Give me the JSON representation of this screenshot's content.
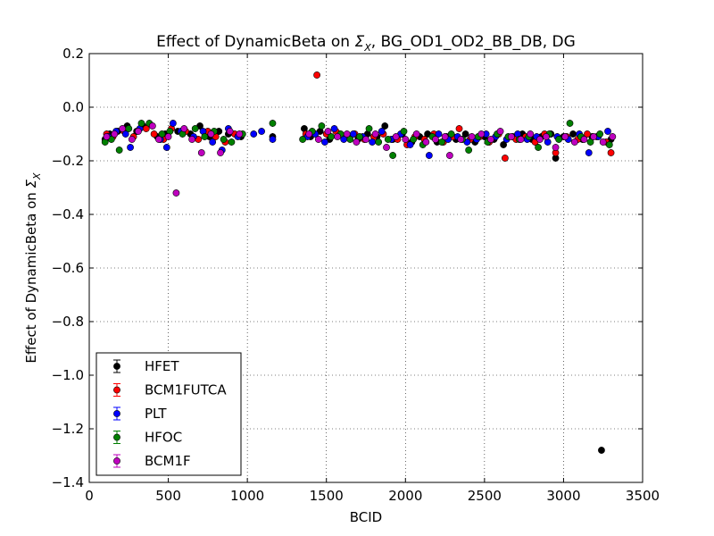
{
  "chart_data": {
    "type": "scatter",
    "title": "Effect of DynamicBeta on Σ_X, BG_OD1_OD2_BB_DB, DG",
    "title_parts": {
      "prefix": "Effect of DynamicBeta on ",
      "sigma": "Σ",
      "sub": "X",
      "suffix": ", BG_OD1_OD2_BB_DB, DG"
    },
    "xlabel": "BCID",
    "ylabel": "Effect of DynamicBeta on Σ_X",
    "ylabel_parts": {
      "prefix": "Effect of DynamicBeta on ",
      "sigma": "Σ",
      "sub": "X"
    },
    "xlim": [
      0,
      3500
    ],
    "ylim": [
      -1.4,
      0.2
    ],
    "xticks": [
      0,
      500,
      1000,
      1500,
      2000,
      2500,
      3000,
      3500
    ],
    "xtick_labels": [
      "0",
      "500",
      "1000",
      "1500",
      "2000",
      "2500",
      "3000",
      "3500"
    ],
    "yticks": [
      0.2,
      0.0,
      -0.2,
      -0.4,
      -0.6,
      -0.8,
      -1.0,
      -1.2,
      -1.4
    ],
    "ytick_labels": [
      "0.2",
      "0.0",
      "−0.2",
      "−0.4",
      "−0.6",
      "−0.8",
      "−1.0",
      "−1.2",
      "−1.4"
    ],
    "grid": true,
    "legend_position": "lower-left",
    "series": [
      {
        "name": "HFET",
        "color": "#000000",
        "points": [
          [
            100,
            -0.12
          ],
          [
            130,
            -0.1
          ],
          [
            180,
            -0.09
          ],
          [
            240,
            -0.07
          ],
          [
            300,
            -0.09
          ],
          [
            340,
            -0.07
          ],
          [
            430,
            -0.11
          ],
          [
            480,
            -0.1
          ],
          [
            560,
            -0.09
          ],
          [
            640,
            -0.1
          ],
          [
            700,
            -0.07
          ],
          [
            760,
            -0.11
          ],
          [
            820,
            -0.09
          ],
          [
            880,
            -0.1
          ],
          [
            960,
            -0.11
          ],
          [
            1160,
            -0.11
          ],
          [
            1360,
            -0.08
          ],
          [
            1400,
            -0.11
          ],
          [
            1460,
            -0.09
          ],
          [
            1520,
            -0.12
          ],
          [
            1580,
            -0.1
          ],
          [
            1640,
            -0.11
          ],
          [
            1700,
            -0.12
          ],
          [
            1760,
            -0.1
          ],
          [
            1820,
            -0.11
          ],
          [
            1870,
            -0.07
          ],
          [
            1920,
            -0.12
          ],
          [
            1980,
            -0.1
          ],
          [
            2040,
            -0.13
          ],
          [
            2090,
            -0.11
          ],
          [
            2140,
            -0.1
          ],
          [
            2200,
            -0.13
          ],
          [
            2260,
            -0.11
          ],
          [
            2320,
            -0.12
          ],
          [
            2380,
            -0.1
          ],
          [
            2440,
            -0.13
          ],
          [
            2500,
            -0.11
          ],
          [
            2560,
            -0.12
          ],
          [
            2620,
            -0.14
          ],
          [
            2680,
            -0.11
          ],
          [
            2740,
            -0.1
          ],
          [
            2800,
            -0.12
          ],
          [
            2860,
            -0.11
          ],
          [
            2920,
            -0.1
          ],
          [
            2950,
            -0.19
          ],
          [
            3000,
            -0.11
          ],
          [
            3060,
            -0.1
          ],
          [
            3120,
            -0.12
          ],
          [
            3180,
            -0.11
          ],
          [
            3240,
            -1.28
          ],
          [
            3300,
            -0.12
          ]
        ]
      },
      {
        "name": "BCM1FUTCA",
        "color": "#ff0000",
        "points": [
          [
            110,
            -0.1
          ],
          [
            150,
            -0.11
          ],
          [
            220,
            -0.09
          ],
          [
            280,
            -0.11
          ],
          [
            360,
            -0.08
          ],
          [
            410,
            -0.1
          ],
          [
            470,
            -0.12
          ],
          [
            520,
            -0.08
          ],
          [
            610,
            -0.09
          ],
          [
            690,
            -0.12
          ],
          [
            750,
            -0.09
          ],
          [
            800,
            -0.11
          ],
          [
            860,
            -0.13
          ],
          [
            920,
            -0.1
          ],
          [
            1370,
            -0.1
          ],
          [
            1440,
            0.12
          ],
          [
            1500,
            -0.1
          ],
          [
            1560,
            -0.09
          ],
          [
            1620,
            -0.11
          ],
          [
            1680,
            -0.1
          ],
          [
            1740,
            -0.12
          ],
          [
            1800,
            -0.11
          ],
          [
            1860,
            -0.1
          ],
          [
            1950,
            -0.12
          ],
          [
            2010,
            -0.14
          ],
          [
            2060,
            -0.11
          ],
          [
            2120,
            -0.12
          ],
          [
            2180,
            -0.1
          ],
          [
            2240,
            -0.13
          ],
          [
            2300,
            -0.11
          ],
          [
            2340,
            -0.08
          ],
          [
            2410,
            -0.12
          ],
          [
            2470,
            -0.11
          ],
          [
            2530,
            -0.13
          ],
          [
            2590,
            -0.1
          ],
          [
            2630,
            -0.19
          ],
          [
            2700,
            -0.12
          ],
          [
            2760,
            -0.11
          ],
          [
            2820,
            -0.13
          ],
          [
            2880,
            -0.1
          ],
          [
            2950,
            -0.17
          ],
          [
            3020,
            -0.11
          ],
          [
            3090,
            -0.12
          ],
          [
            3150,
            -0.1
          ],
          [
            3210,
            -0.11
          ],
          [
            3270,
            -0.13
          ],
          [
            3300,
            -0.17
          ]
        ]
      },
      {
        "name": "PLT",
        "color": "#0000ff",
        "points": [
          [
            120,
            -0.11
          ],
          [
            170,
            -0.09
          ],
          [
            230,
            -0.1
          ],
          [
            260,
            -0.15
          ],
          [
            320,
            -0.08
          ],
          [
            450,
            -0.12
          ],
          [
            490,
            -0.15
          ],
          [
            530,
            -0.06
          ],
          [
            580,
            -0.09
          ],
          [
            660,
            -0.11
          ],
          [
            720,
            -0.09
          ],
          [
            780,
            -0.13
          ],
          [
            840,
            -0.16
          ],
          [
            880,
            -0.08
          ],
          [
            940,
            -0.11
          ],
          [
            1040,
            -0.1
          ],
          [
            1090,
            -0.09
          ],
          [
            1160,
            -0.12
          ],
          [
            1380,
            -0.11
          ],
          [
            1430,
            -0.1
          ],
          [
            1490,
            -0.13
          ],
          [
            1550,
            -0.08
          ],
          [
            1610,
            -0.12
          ],
          [
            1670,
            -0.1
          ],
          [
            1730,
            -0.11
          ],
          [
            1790,
            -0.13
          ],
          [
            1850,
            -0.09
          ],
          [
            1910,
            -0.12
          ],
          [
            1970,
            -0.1
          ],
          [
            2030,
            -0.14
          ],
          [
            2150,
            -0.18
          ],
          [
            2210,
            -0.1
          ],
          [
            2270,
            -0.12
          ],
          [
            2330,
            -0.11
          ],
          [
            2390,
            -0.13
          ],
          [
            2450,
            -0.12
          ],
          [
            2510,
            -0.1
          ],
          [
            2570,
            -0.11
          ],
          [
            2640,
            -0.12
          ],
          [
            2710,
            -0.1
          ],
          [
            2770,
            -0.12
          ],
          [
            2830,
            -0.11
          ],
          [
            2900,
            -0.13
          ],
          [
            2960,
            -0.11
          ],
          [
            3030,
            -0.12
          ],
          [
            3100,
            -0.1
          ],
          [
            3160,
            -0.17
          ],
          [
            3220,
            -0.11
          ],
          [
            3280,
            -0.09
          ]
        ]
      },
      {
        "name": "HFOC",
        "color": "#008000",
        "points": [
          [
            100,
            -0.13
          ],
          [
            140,
            -0.12
          ],
          [
            190,
            -0.16
          ],
          [
            250,
            -0.08
          ],
          [
            330,
            -0.06
          ],
          [
            380,
            -0.06
          ],
          [
            460,
            -0.1
          ],
          [
            510,
            -0.09
          ],
          [
            590,
            -0.1
          ],
          [
            670,
            -0.08
          ],
          [
            730,
            -0.11
          ],
          [
            790,
            -0.09
          ],
          [
            850,
            -0.12
          ],
          [
            900,
            -0.13
          ],
          [
            970,
            -0.1
          ],
          [
            1160,
            -0.06
          ],
          [
            1350,
            -0.12
          ],
          [
            1410,
            -0.09
          ],
          [
            1470,
            -0.07
          ],
          [
            1530,
            -0.11
          ],
          [
            1590,
            -0.1
          ],
          [
            1650,
            -0.12
          ],
          [
            1710,
            -0.11
          ],
          [
            1770,
            -0.08
          ],
          [
            1830,
            -0.13
          ],
          [
            1890,
            -0.12
          ],
          [
            1920,
            -0.18
          ],
          [
            1990,
            -0.09
          ],
          [
            2050,
            -0.12
          ],
          [
            2110,
            -0.14
          ],
          [
            2170,
            -0.11
          ],
          [
            2230,
            -0.13
          ],
          [
            2290,
            -0.1
          ],
          [
            2360,
            -0.12
          ],
          [
            2400,
            -0.16
          ],
          [
            2460,
            -0.11
          ],
          [
            2520,
            -0.13
          ],
          [
            2580,
            -0.1
          ],
          [
            2650,
            -0.11
          ],
          [
            2720,
            -0.12
          ],
          [
            2780,
            -0.11
          ],
          [
            2840,
            -0.15
          ],
          [
            2910,
            -0.1
          ],
          [
            2970,
            -0.12
          ],
          [
            3040,
            -0.06
          ],
          [
            3110,
            -0.11
          ],
          [
            3170,
            -0.13
          ],
          [
            3230,
            -0.1
          ],
          [
            3290,
            -0.14
          ]
        ]
      },
      {
        "name": "BCM1F",
        "color": "#bf00bf",
        "points": [
          [
            110,
            -0.11
          ],
          [
            160,
            -0.1
          ],
          [
            210,
            -0.08
          ],
          [
            270,
            -0.12
          ],
          [
            310,
            -0.09
          ],
          [
            400,
            -0.07
          ],
          [
            440,
            -0.12
          ],
          [
            500,
            -0.11
          ],
          [
            550,
            -0.32
          ],
          [
            600,
            -0.08
          ],
          [
            650,
            -0.12
          ],
          [
            710,
            -0.17
          ],
          [
            770,
            -0.1
          ],
          [
            830,
            -0.17
          ],
          [
            890,
            -0.09
          ],
          [
            950,
            -0.1
          ],
          [
            1390,
            -0.1
          ],
          [
            1450,
            -0.12
          ],
          [
            1510,
            -0.09
          ],
          [
            1570,
            -0.11
          ],
          [
            1630,
            -0.1
          ],
          [
            1690,
            -0.13
          ],
          [
            1750,
            -0.12
          ],
          [
            1810,
            -0.1
          ],
          [
            1880,
            -0.15
          ],
          [
            1940,
            -0.11
          ],
          [
            2000,
            -0.12
          ],
          [
            2070,
            -0.1
          ],
          [
            2130,
            -0.13
          ],
          [
            2190,
            -0.12
          ],
          [
            2250,
            -0.11
          ],
          [
            2280,
            -0.18
          ],
          [
            2350,
            -0.12
          ],
          [
            2420,
            -0.11
          ],
          [
            2480,
            -0.1
          ],
          [
            2540,
            -0.12
          ],
          [
            2600,
            -0.09
          ],
          [
            2670,
            -0.11
          ],
          [
            2730,
            -0.12
          ],
          [
            2790,
            -0.1
          ],
          [
            2850,
            -0.12
          ],
          [
            2890,
            -0.11
          ],
          [
            2950,
            -0.15
          ],
          [
            3010,
            -0.11
          ],
          [
            3070,
            -0.13
          ],
          [
            3130,
            -0.12
          ],
          [
            3190,
            -0.11
          ],
          [
            3250,
            -0.13
          ],
          [
            3310,
            -0.11
          ]
        ]
      }
    ]
  }
}
